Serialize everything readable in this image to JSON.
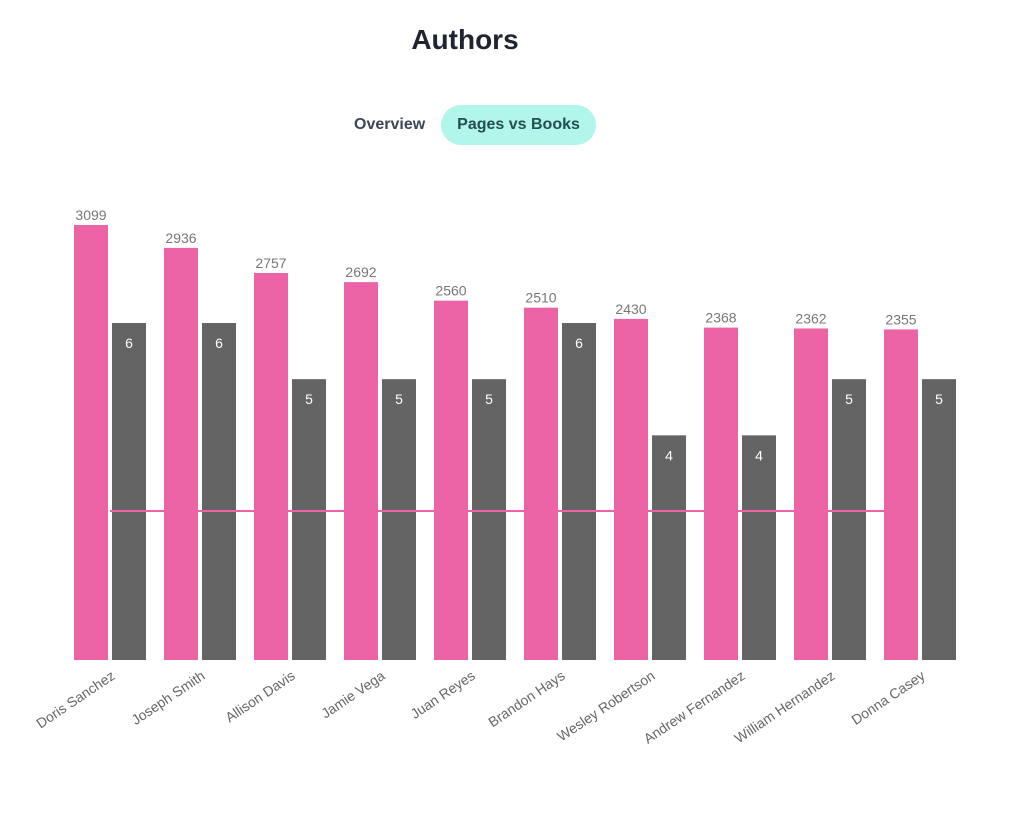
{
  "page": {
    "title": "Authors"
  },
  "tabs": [
    {
      "label": "Overview",
      "active": false
    },
    {
      "label": "Pages vs Books",
      "active": true
    }
  ],
  "colors": {
    "pages": "#ec64a6",
    "books": "#646464",
    "reference_line": "#ec64a6",
    "active_tab_bg": "#b2f5ea"
  },
  "chart_data": {
    "type": "bar",
    "categories": [
      "Doris Sanchez",
      "Joseph Smith",
      "Allison Davis",
      "Jamie Vega",
      "Juan Reyes",
      "Brandon Hays",
      "Wesley Robertson",
      "Andrew Fernandez",
      "William Hernandez",
      "Donna Casey"
    ],
    "series": [
      {
        "key": "pages",
        "values": [
          3099,
          2936,
          2757,
          2692,
          2560,
          2510,
          2430,
          2368,
          2362,
          2355
        ],
        "color": "#ec64a6",
        "label_position": "above"
      },
      {
        "key": "books",
        "values": [
          6,
          6,
          5,
          5,
          5,
          6,
          4,
          4,
          5,
          5
        ],
        "color": "#646464",
        "label_position": "inside-top"
      }
    ],
    "reference_line": {
      "series": "pages",
      "color": "#ec64a6"
    },
    "grid": false,
    "legend": "none"
  }
}
